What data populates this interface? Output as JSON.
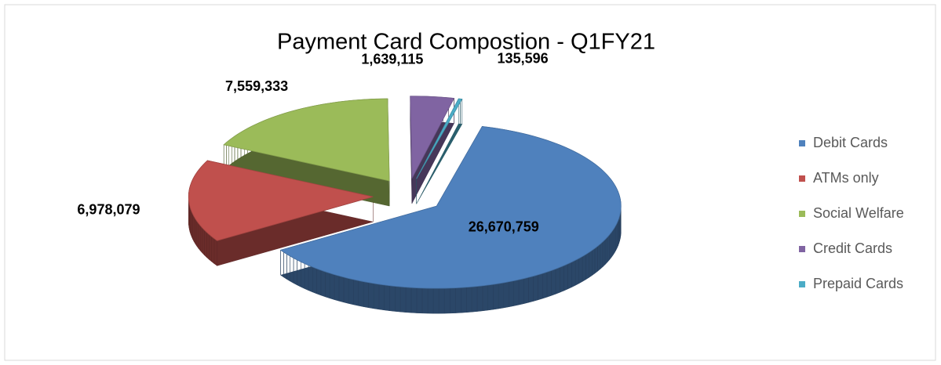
{
  "chart_data": {
    "type": "pie3d",
    "title": "Payment Card Compostion - Q1FY21",
    "categories": [
      "Debit Cards",
      "ATMs only",
      "Social Welfare",
      "Credit Cards",
      "Prepaid Cards"
    ],
    "values": [
      26670759,
      6978079,
      7559333,
      1639115,
      135596
    ],
    "value_labels": [
      "26,670,759",
      "6,978,079",
      "7,559,333",
      "1,639,115",
      "135,596"
    ],
    "colors": [
      "#4f81bd",
      "#c0504d",
      "#9bbb59",
      "#8064a2",
      "#4bacc6"
    ],
    "legend": "right"
  }
}
